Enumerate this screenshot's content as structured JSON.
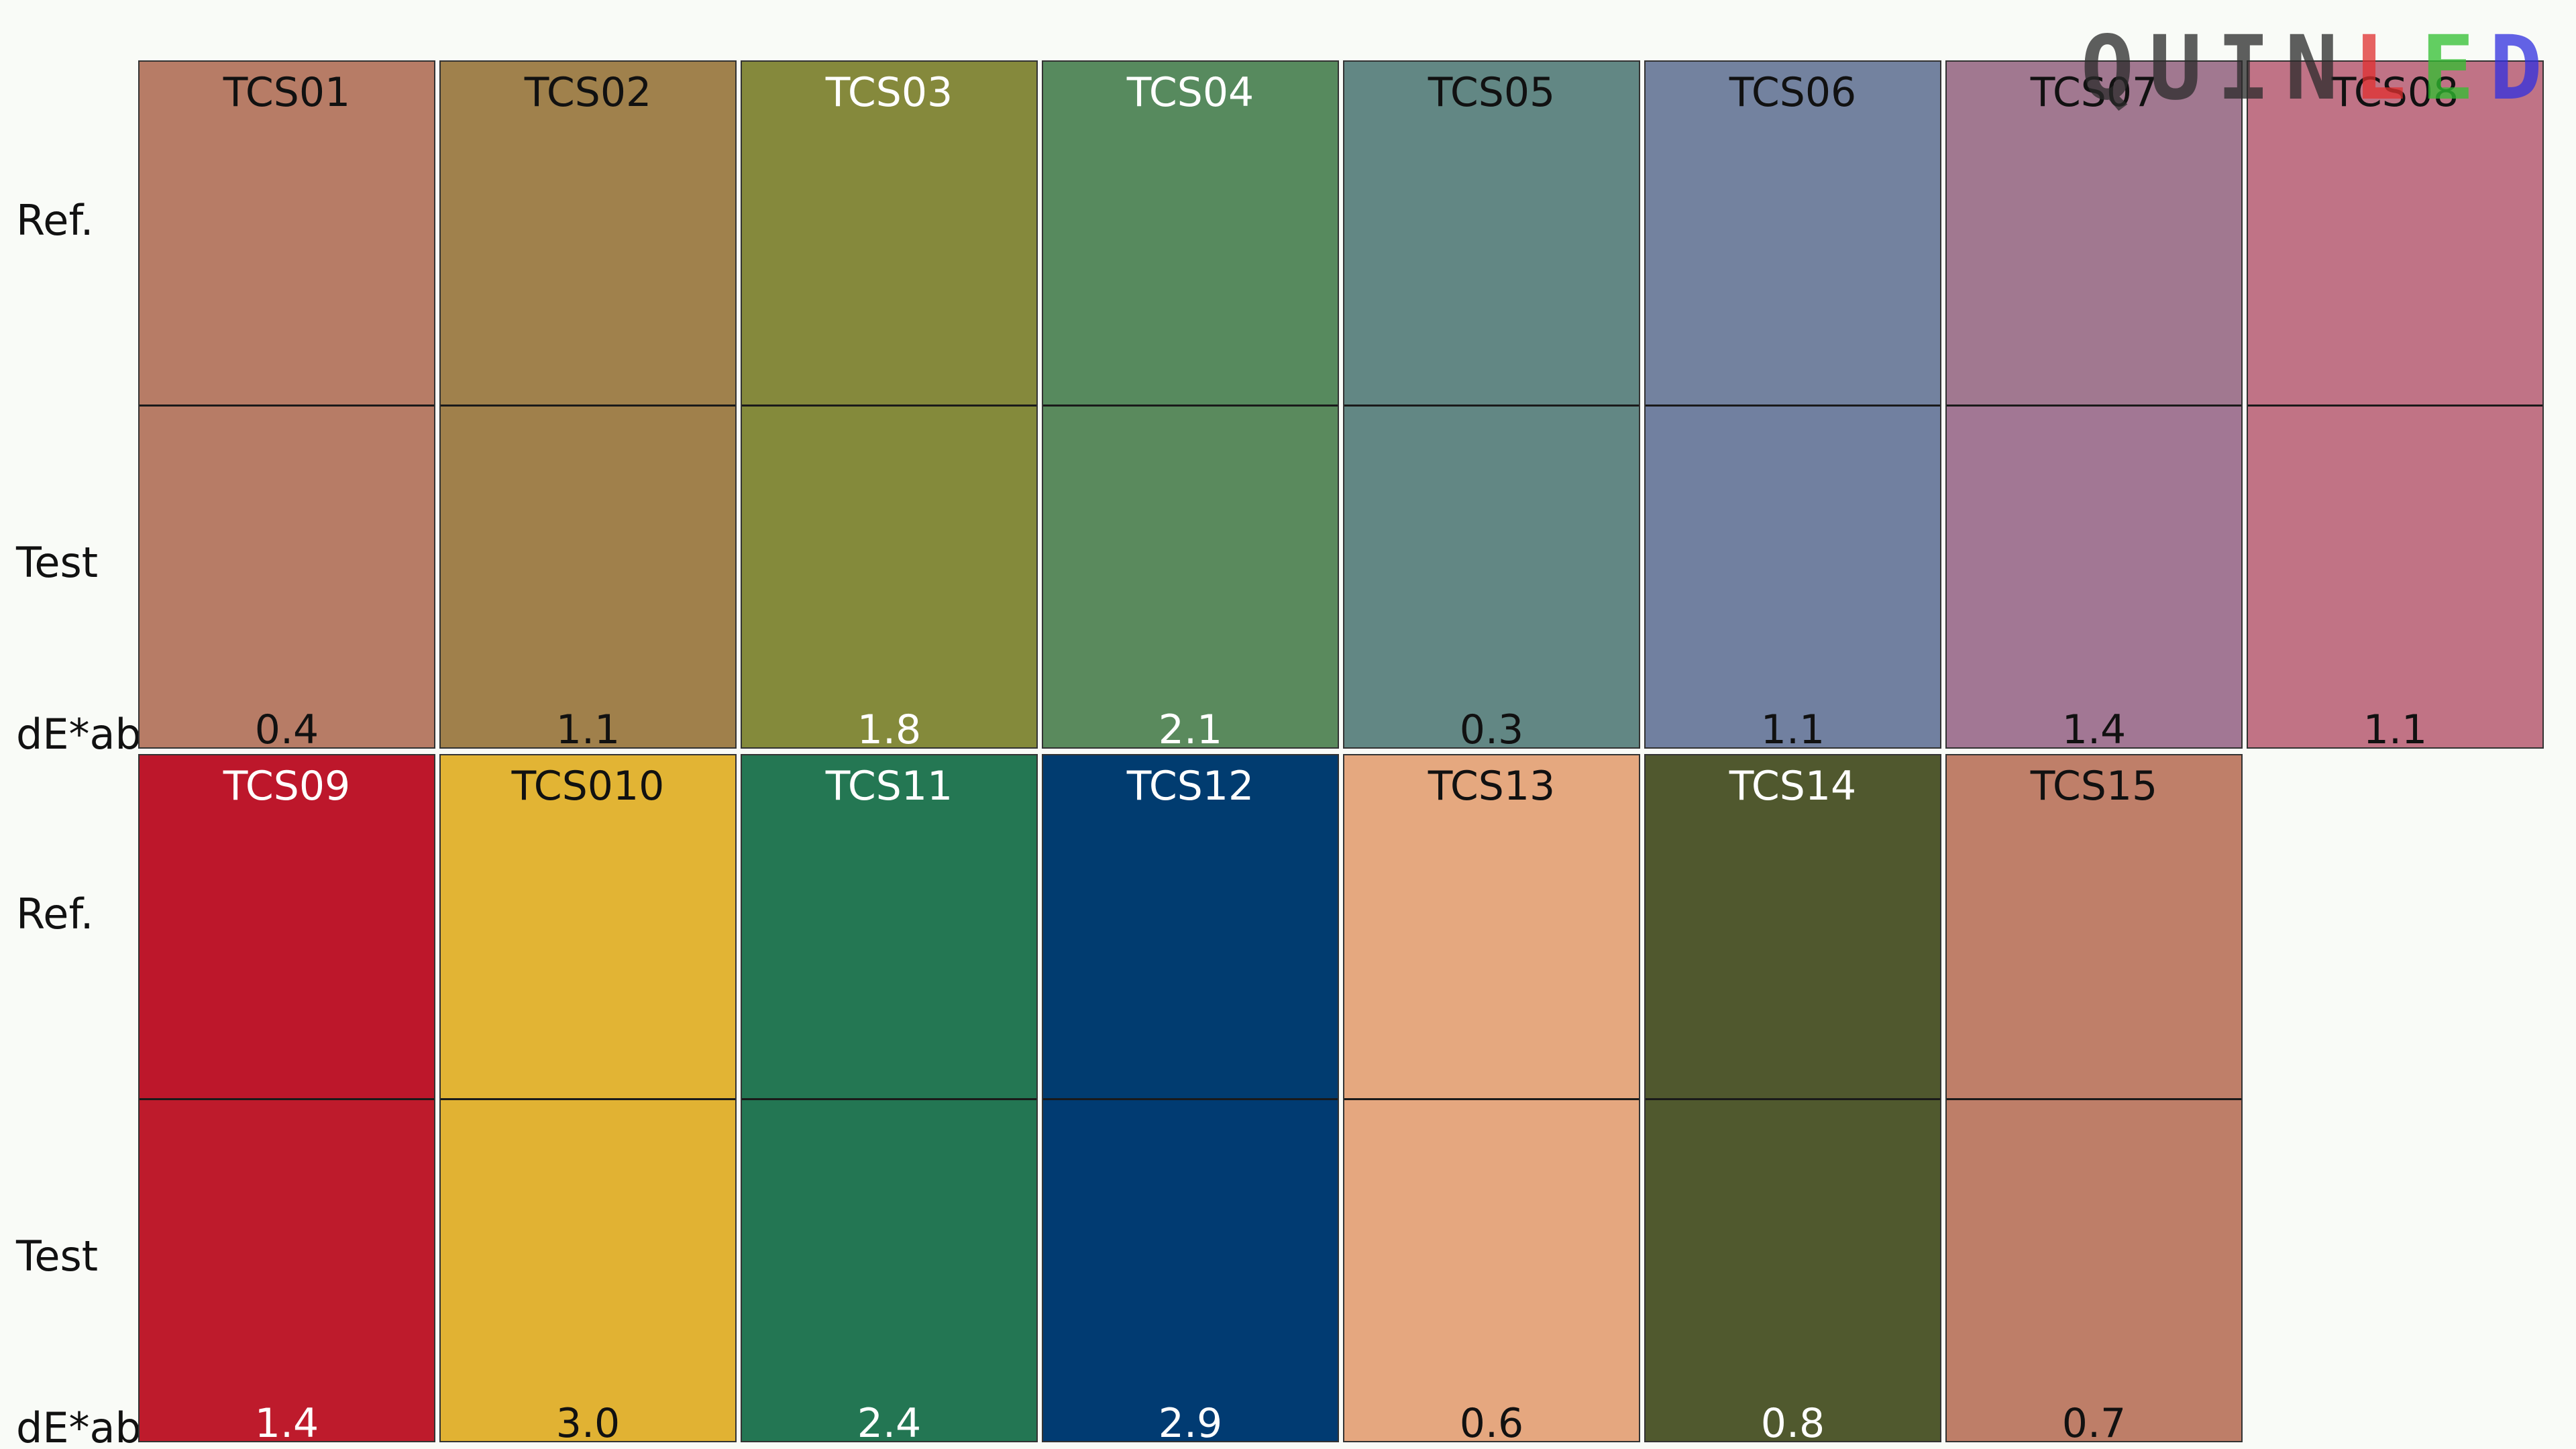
{
  "row_labels": {
    "ref": "Ref.",
    "test": "Test",
    "de": "dE*ab"
  },
  "logo": {
    "letters": [
      {
        "char": "Q",
        "color": "#2a2a2a"
      },
      {
        "char": "U",
        "color": "#2a2a2a"
      },
      {
        "char": "I",
        "color": "#2a2a2a"
      },
      {
        "char": "N",
        "color": "#2a2a2a"
      },
      {
        "char": "L",
        "color": "#e03030"
      },
      {
        "char": "E",
        "color": "#30c030"
      },
      {
        "char": "D",
        "color": "#3030e0"
      }
    ]
  },
  "chart_data": {
    "type": "table",
    "metric": "dE*ab",
    "swatches": [
      {
        "name": "TCS01",
        "ref_color": "#b77c66",
        "test_color": "#b77c66",
        "de": "0.4",
        "text_color": "#111111"
      },
      {
        "name": "TCS02",
        "ref_color": "#a0814c",
        "test_color": "#a0804b",
        "de": "1.1",
        "text_color": "#111111"
      },
      {
        "name": "TCS03",
        "ref_color": "#85893c",
        "test_color": "#848a3b",
        "de": "1.8",
        "text_color": "#ffffff"
      },
      {
        "name": "TCS04",
        "ref_color": "#578a5e",
        "test_color": "#5a8a5d",
        "de": "2.1",
        "text_color": "#ffffff"
      },
      {
        "name": "TCS05",
        "ref_color": "#628784",
        "test_color": "#628784",
        "de": "0.3",
        "text_color": "#111111"
      },
      {
        "name": "TCS06",
        "ref_color": "#73829f",
        "test_color": "#7180a0",
        "de": "1.1",
        "text_color": "#111111"
      },
      {
        "name": "TCS07",
        "ref_color": "#a17890",
        "test_color": "#a27794",
        "de": "1.4",
        "text_color": "#111111"
      },
      {
        "name": "TCS08",
        "ref_color": "#c07386",
        "test_color": "#c17385",
        "de": "1.1",
        "text_color": "#111111"
      },
      {
        "name": "TCS09",
        "ref_color": "#bd172b",
        "test_color": "#be1b2c",
        "de": "1.4",
        "text_color": "#ffffff"
      },
      {
        "name": "TCS010",
        "ref_color": "#e2b434",
        "test_color": "#e1b233",
        "de": "3.0",
        "text_color": "#111111"
      },
      {
        "name": "TCS11",
        "ref_color": "#247753",
        "test_color": "#237653",
        "de": "2.4",
        "text_color": "#ffffff"
      },
      {
        "name": "TCS12",
        "ref_color": "#013c70",
        "test_color": "#013b72",
        "de": "2.9",
        "text_color": "#ffffff"
      },
      {
        "name": "TCS13",
        "ref_color": "#e5a87f",
        "test_color": "#e5a77f",
        "de": "0.6",
        "text_color": "#111111"
      },
      {
        "name": "TCS14",
        "ref_color": "#50582e",
        "test_color": "#50592e",
        "de": "0.8",
        "text_color": "#ffffff"
      },
      {
        "name": "TCS15",
        "ref_color": "#bf7f69",
        "test_color": "#be7e68",
        "de": "0.7",
        "text_color": "#111111"
      }
    ]
  }
}
